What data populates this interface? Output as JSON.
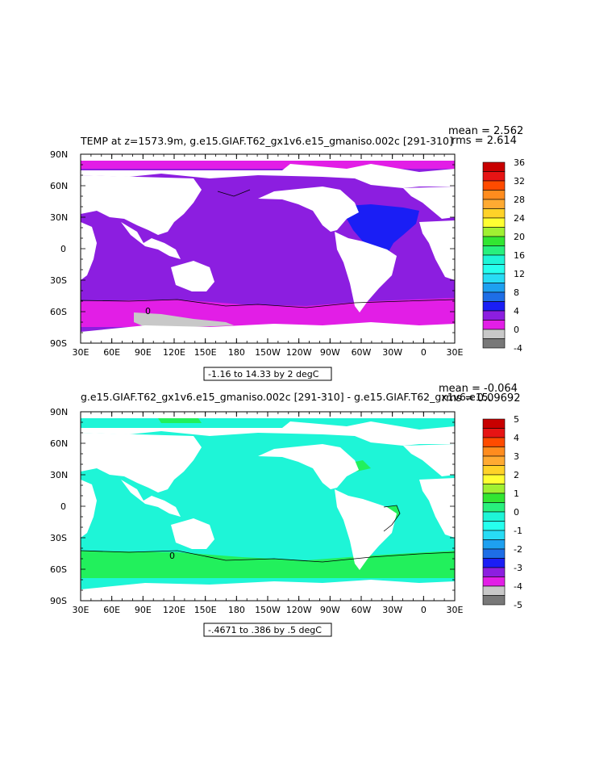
{
  "panel1": {
    "title": "TEMP at z=1573.9m, g.e15.GIAF.T62_gx1v6.e15_gmaniso.002c [291-310]",
    "mean_label": "mean = 2.562",
    "rms_label": "rms = 2.614",
    "range_label": "-1.16 to 14.33 by 2 degC",
    "colorbar_ticks": [
      "36",
      "32",
      "28",
      "24",
      "20",
      "16",
      "12",
      "8",
      "4",
      "0",
      "-4"
    ],
    "contour_label": "0"
  },
  "panel2": {
    "title": "g.e15.GIAF.T62_gx1v6.e15_gmaniso.002c [291-310] - g.e15.GIAF.T62_gx1v6.e15.",
    "mean_label": "mean = -0.064",
    "rms_label": "rms = 0.09692",
    "range_label": "-.4671 to .386 by .5 degC",
    "colorbar_ticks": [
      "5",
      "4",
      "3",
      "2",
      "1",
      "0",
      "-1",
      "-2",
      "-3",
      "-4",
      "-5"
    ],
    "contour_label": "0"
  },
  "axes": {
    "lat_labels": [
      "90N",
      "60N",
      "30N",
      "0",
      "30S",
      "60S",
      "90S"
    ],
    "lon_labels": [
      "30E",
      "60E",
      "90E",
      "120E",
      "150E",
      "180",
      "150W",
      "120W",
      "90W",
      "60W",
      "30W",
      "0",
      "30E"
    ]
  },
  "colors": {
    "purple": "#8c1ee0",
    "magenta": "#e21ee6",
    "blue": "#1a1ef5",
    "sky": "#1ea0f0",
    "cyan_light": "#26ffee",
    "cyan": "#1ef5d7",
    "green": "#22f05c",
    "gray_light": "#c8c8c8",
    "gray_dark": "#787878"
  },
  "colorbar1_colors": [
    "#c80000",
    "#e61414",
    "#ff4b00",
    "#ff8c1e",
    "#ffaa32",
    "#ffd228",
    "#ffff32",
    "#a0f032",
    "#32e632",
    "#28f07d",
    "#1ef5d7",
    "#26ffee",
    "#28dcf5",
    "#1ea0f0",
    "#1e6ee6",
    "#1a1ef5",
    "#8c1ee0",
    "#e21ee6",
    "#c8c8c8",
    "#787878"
  ],
  "colorbar2_colors": [
    "#c80000",
    "#e61414",
    "#ff4b00",
    "#ff8c1e",
    "#ffaa32",
    "#ffd228",
    "#ffff32",
    "#a0f032",
    "#32e632",
    "#28f07d",
    "#1ef5d7",
    "#26ffee",
    "#28dcf5",
    "#1ea0f0",
    "#1e6ee6",
    "#1a1ef5",
    "#8c1ee0",
    "#e21ee6",
    "#c8c8c8",
    "#787878"
  ]
}
